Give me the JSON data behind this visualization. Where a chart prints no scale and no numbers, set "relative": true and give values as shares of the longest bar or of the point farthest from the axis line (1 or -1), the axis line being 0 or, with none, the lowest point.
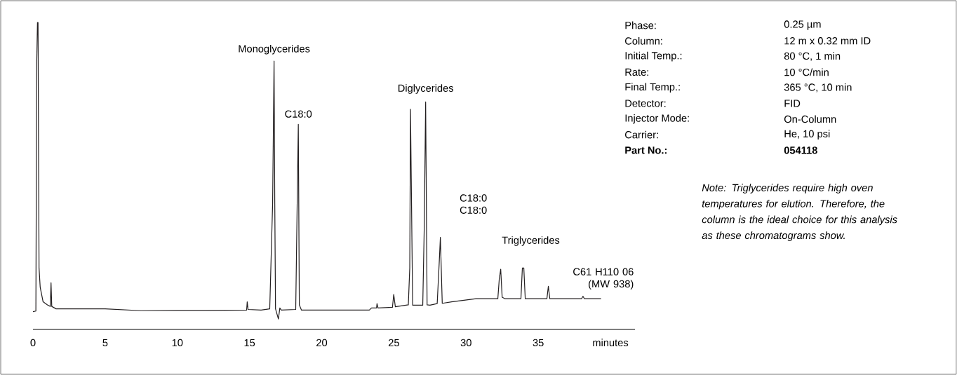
{
  "chart_data": {
    "type": "line",
    "relative": true,
    "xlabel": "minutes",
    "xlim": [
      0,
      41.7
    ],
    "xticks": [
      0,
      5,
      10,
      15,
      20,
      25,
      30,
      35
    ],
    "marker": "none",
    "line_style": "solid",
    "series": [
      {
        "color": "#231f20",
        "x": [
          0,
          0.2,
          0.26,
          0.31,
          0.35,
          0.42,
          0.5,
          0.7,
          1.0,
          1.2,
          1.25,
          1.3,
          1.6,
          5,
          7.5,
          10,
          12,
          14.8,
          14.84,
          14.9,
          15.8,
          16.4,
          16.6,
          16.7,
          16.75,
          16.8,
          17.0,
          17.1,
          17.2,
          18.2,
          18.32,
          18.38,
          18.45,
          18.6,
          20,
          22.2,
          23.3,
          23.45,
          23.8,
          23.83,
          23.9,
          24.9,
          24.99,
          25.1,
          26.0,
          26.1,
          26.15,
          26.3,
          27.0,
          27.1,
          27.2,
          27.3,
          27.5,
          28.0,
          28.15,
          28.22,
          28.35,
          29,
          30.7,
          32.2,
          32.3,
          32.4,
          32.5,
          32.7,
          33.8,
          33.9,
          34.0,
          34.1,
          35.6,
          35.7,
          35.8,
          38.0,
          38.1,
          38.2,
          39.35
        ],
        "values": [
          0.058,
          0.06,
          0.874,
          1.0,
          1.0,
          0.2,
          0.137,
          0.09,
          0.08,
          0.075,
          0.152,
          0.075,
          0.067,
          0.067,
          0.061,
          0.062,
          0.062,
          0.063,
          0.09,
          0.065,
          0.063,
          0.067,
          0.41,
          0.874,
          0.41,
          0.067,
          0.034,
          0.07,
          0.063,
          0.065,
          0.474,
          0.668,
          0.08,
          0.063,
          0.063,
          0.063,
          0.063,
          0.07,
          0.07,
          0.084,
          0.07,
          0.072,
          0.114,
          0.074,
          0.08,
          0.2,
          0.717,
          0.079,
          0.079,
          0.325,
          0.741,
          0.08,
          0.079,
          0.084,
          0.227,
          0.3,
          0.085,
          0.09,
          0.1,
          0.1,
          0.164,
          0.196,
          0.105,
          0.1,
          0.1,
          0.2,
          0.2,
          0.1,
          0.1,
          0.141,
          0.1,
          0.1,
          0.108,
          0.1,
          0.1
        ]
      }
    ],
    "annotations": [
      {
        "text": "Monoglycerides",
        "x": 16.7,
        "y": 0.874
      },
      {
        "text": "C18:0",
        "x": 18.38,
        "y": 0.668
      },
      {
        "text": "Diglycerides",
        "x": 27.2,
        "y": 0.741
      },
      {
        "text": "C18:0 C18:0",
        "x": 28.22,
        "y": 0.3
      },
      {
        "text": "Triglycerides",
        "x": 33.9,
        "y": 0.2
      },
      {
        "text": "C61 H110 06 (MW 938)",
        "x": 38.1,
        "y": 0.108
      },
      "Phase:",
      "0.25 µm",
      "Column:",
      "12 m x 0.32 mm ID",
      "Initial Temp.:",
      "80 °C, 1 min",
      "Rate:",
      "10 °C/min",
      "Final Temp.:",
      "365 °C, 10 min",
      "Detector:",
      "FID",
      "Injector Mode:",
      "On-Column",
      "Carrier:",
      "He, 10 psi",
      "Part No.:",
      "054118",
      "Note: Triglycerides require high oven temperatures for elution. Therefore, the column is the ideal choice for this analysis as these chromatograms show."
    ]
  }
}
